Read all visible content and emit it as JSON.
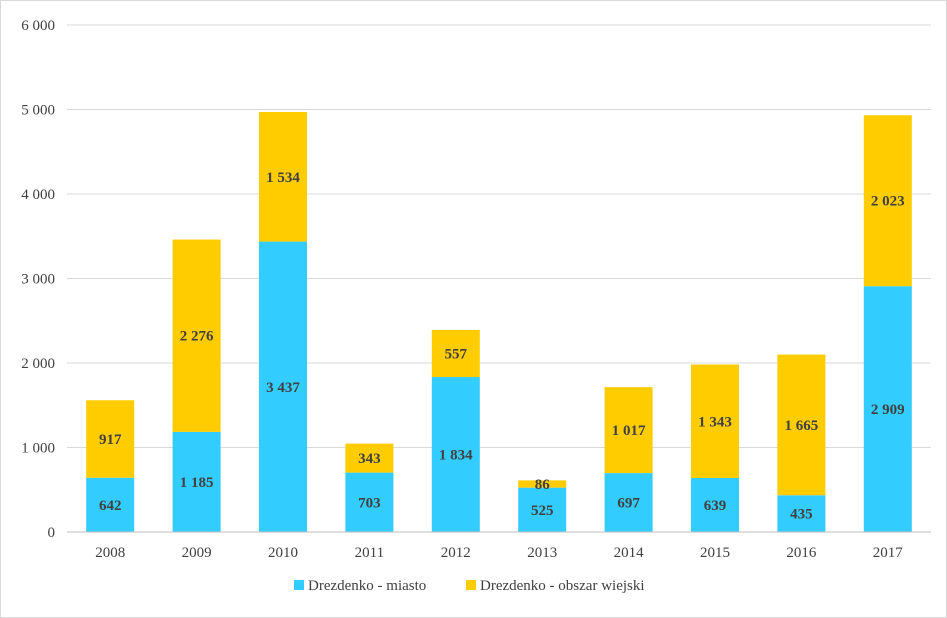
{
  "chart_data": {
    "type": "bar",
    "stacked": true,
    "title": "",
    "xlabel": "",
    "ylabel": "",
    "categories": [
      "2008",
      "2009",
      "2010",
      "2011",
      "2012",
      "2013",
      "2014",
      "2015",
      "2016",
      "2017"
    ],
    "series": [
      {
        "name": "Drezdenko - miasto",
        "color": "#33ccff",
        "values": [
          642,
          1185,
          3437,
          703,
          1834,
          525,
          697,
          639,
          435,
          2909
        ],
        "labels": [
          "642",
          "1 185",
          "3 437",
          "703",
          "1 834",
          "525",
          "697",
          "639",
          "435",
          "2 909"
        ]
      },
      {
        "name": "Drezdenko - obszar wiejski",
        "color": "#ffcc00",
        "values": [
          917,
          2276,
          1534,
          343,
          557,
          86,
          1017,
          1343,
          1665,
          2023
        ],
        "labels": [
          "917",
          "2 276",
          "1 534",
          "343",
          "557",
          "86",
          "1 017",
          "1 343",
          "1 665",
          "2 023"
        ]
      }
    ],
    "ylim": [
      0,
      6000
    ],
    "yticks": [
      0,
      1000,
      2000,
      3000,
      4000,
      5000,
      6000
    ],
    "ytick_labels": [
      "0",
      "1 000",
      "2 000",
      "3 000",
      "4 000",
      "5 000",
      "6 000"
    ],
    "grid": true,
    "gridline_color": "#d9d9d9",
    "axis_color": "#bfbfbf",
    "legend_position": "bottom"
  }
}
